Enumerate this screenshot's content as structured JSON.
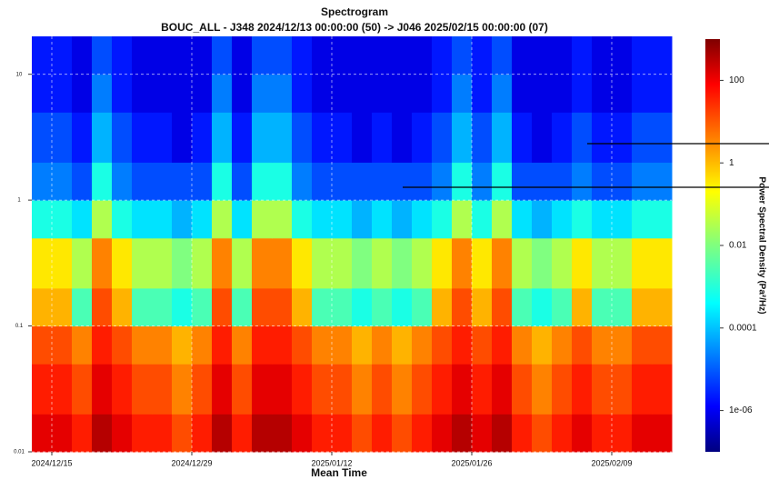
{
  "chart_data": {
    "type": "heatmap",
    "title": "Spectrogram",
    "subtitle": "BOUC_ALL - J348 2024/12/13 00:00:00 (50) -> J046 2025/02/15 00:00:00 (07)",
    "x_label": "Mean Time",
    "colorbar_label": "Power Spectral Density (Pa²/Hz)",
    "xlim": [
      "2024/12/13",
      "2025/02/15"
    ],
    "xticks": [
      "2024/12/15",
      "2024/12/29",
      "2025/01/12",
      "2025/01/26",
      "2025/02/09"
    ],
    "ylim": [
      0.01,
      20
    ],
    "yticks": [
      0.01,
      0.1,
      1,
      10
    ],
    "log_y": true,
    "grid": true,
    "colormap": "jet",
    "colorlim": [
      1e-07,
      1000
    ],
    "log_color": true,
    "colorticks": [
      100,
      1,
      0.01,
      0.0001,
      {
        "value": 1e-06,
        "label": "1e-06"
      }
    ],
    "x": [
      "2024/12/13",
      "2024/12/15",
      "2024/12/17",
      "2024/12/19",
      "2024/12/21",
      "2024/12/23",
      "2024/12/25",
      "2024/12/27",
      "2024/12/29",
      "2024/12/31",
      "2025/01/02",
      "2025/01/04",
      "2025/01/06",
      "2025/01/08",
      "2025/01/10",
      "2025/01/12",
      "2025/01/14",
      "2025/01/16",
      "2025/01/18",
      "2025/01/20",
      "2025/01/22",
      "2025/01/24",
      "2025/01/26",
      "2025/01/28",
      "2025/01/30",
      "2025/02/01",
      "2025/02/03",
      "2025/02/05",
      "2025/02/07",
      "2025/02/09",
      "2025/02/11",
      "2025/02/13"
    ],
    "y": [
      0.01,
      0.02,
      0.05,
      0.1,
      0.2,
      0.5,
      1,
      2,
      5,
      10
    ],
    "z": [
      [
        100,
        100,
        30,
        300,
        100,
        30,
        30,
        10,
        30,
        300,
        30,
        300,
        300,
        100,
        30,
        30,
        10,
        30,
        10,
        30,
        100,
        300,
        100,
        300,
        30,
        10,
        30,
        100,
        30,
        30,
        100,
        100
      ],
      [
        30,
        30,
        10,
        100,
        30,
        10,
        10,
        3,
        10,
        100,
        10,
        100,
        100,
        30,
        10,
        10,
        3,
        10,
        3,
        10,
        30,
        100,
        30,
        100,
        10,
        3,
        10,
        30,
        10,
        10,
        30,
        30
      ],
      [
        10,
        10,
        3,
        30,
        10,
        3,
        3,
        1,
        3,
        30,
        3,
        30,
        30,
        10,
        3,
        3,
        1,
        3,
        1,
        3,
        10,
        30,
        10,
        30,
        3,
        1,
        3,
        10,
        3,
        3,
        10,
        10
      ],
      [
        1,
        1,
        0.003,
        10,
        1,
        0.003,
        0.003,
        0.001,
        0.003,
        10,
        0.003,
        10,
        10,
        1,
        0.003,
        0.003,
        0.001,
        0.003,
        0.001,
        0.003,
        1,
        10,
        1,
        10,
        0.003,
        0.001,
        0.003,
        1,
        0.003,
        0.003,
        1,
        1
      ],
      [
        0.3,
        0.3,
        0.03,
        3,
        0.3,
        0.03,
        0.03,
        0.01,
        0.03,
        3,
        0.03,
        3,
        3,
        0.3,
        0.03,
        0.03,
        0.01,
        0.03,
        0.01,
        0.03,
        0.3,
        3,
        0.3,
        3,
        0.03,
        0.01,
        0.03,
        0.3,
        0.03,
        0.03,
        0.3,
        0.3
      ],
      [
        0.001,
        0.001,
        0.0003,
        0.03,
        0.001,
        0.0003,
        0.0003,
        0.0001,
        0.0003,
        0.03,
        0.0003,
        0.03,
        0.03,
        0.001,
        0.0003,
        0.0003,
        0.0001,
        0.0003,
        0.0001,
        0.0003,
        0.001,
        0.03,
        0.001,
        0.03,
        0.0003,
        0.0001,
        0.0003,
        0.001,
        0.0003,
        0.0003,
        0.001,
        0.001
      ],
      [
        3e-05,
        3e-05,
        1e-05,
        0.001,
        3e-05,
        1e-05,
        1e-05,
        1e-05,
        1e-05,
        0.001,
        1e-05,
        0.001,
        0.001,
        3e-05,
        1e-05,
        1e-05,
        1e-05,
        1e-05,
        1e-05,
        1e-05,
        3e-05,
        0.001,
        3e-05,
        0.001,
        1e-05,
        1e-05,
        1e-05,
        3e-05,
        1e-05,
        1e-05,
        3e-05,
        3e-05
      ],
      [
        1e-05,
        1e-05,
        3e-06,
        0.0001,
        1e-05,
        3e-06,
        3e-06,
        1e-06,
        3e-06,
        0.0001,
        3e-06,
        0.0001,
        0.0001,
        1e-05,
        3e-06,
        3e-06,
        1e-06,
        3e-06,
        1e-06,
        3e-06,
        1e-05,
        0.0001,
        1e-05,
        0.0001,
        3e-06,
        1e-06,
        3e-06,
        1e-05,
        3e-06,
        3e-06,
        1e-05,
        1e-05
      ],
      [
        3e-06,
        3e-06,
        1e-06,
        3e-05,
        3e-06,
        1e-06,
        1e-06,
        1e-06,
        1e-06,
        3e-05,
        1e-06,
        3e-05,
        3e-05,
        3e-06,
        1e-06,
        1e-06,
        1e-06,
        1e-06,
        1e-06,
        1e-06,
        3e-06,
        3e-05,
        3e-06,
        3e-05,
        1e-06,
        1e-06,
        1e-06,
        3e-06,
        1e-06,
        1e-06,
        3e-06,
        3e-06
      ],
      [
        3e-06,
        3e-06,
        1e-06,
        1e-05,
        3e-06,
        1e-06,
        1e-06,
        1e-06,
        1e-06,
        1e-05,
        1e-06,
        1e-05,
        1e-05,
        3e-06,
        1e-06,
        1e-06,
        1e-06,
        1e-06,
        1e-06,
        1e-06,
        3e-06,
        1e-05,
        3e-06,
        1e-05,
        1e-06,
        1e-06,
        1e-06,
        3e-06,
        1e-06,
        1e-06,
        3e-06,
        3e-06
      ]
    ]
  }
}
